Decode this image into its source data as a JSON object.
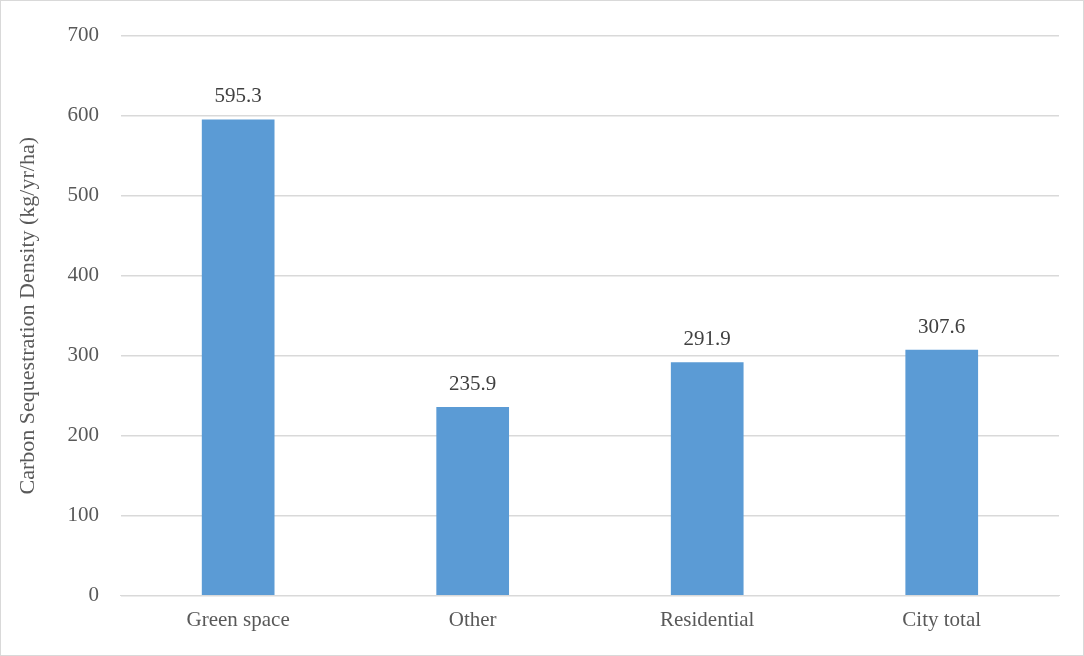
{
  "chart_data": {
    "type": "bar",
    "ylabel": "Carbon Sequestration Density (kg/yr/ha)",
    "categories": [
      "Green space",
      "Other",
      "Residential",
      "City total"
    ],
    "values": [
      595.3,
      235.9,
      291.9,
      307.6
    ],
    "color": "#5b9bd5",
    "ylim": [
      0,
      700
    ],
    "yticks": [
      0,
      100,
      200,
      300,
      400,
      500,
      600,
      700
    ],
    "grid": "y",
    "data_labels": true
  }
}
